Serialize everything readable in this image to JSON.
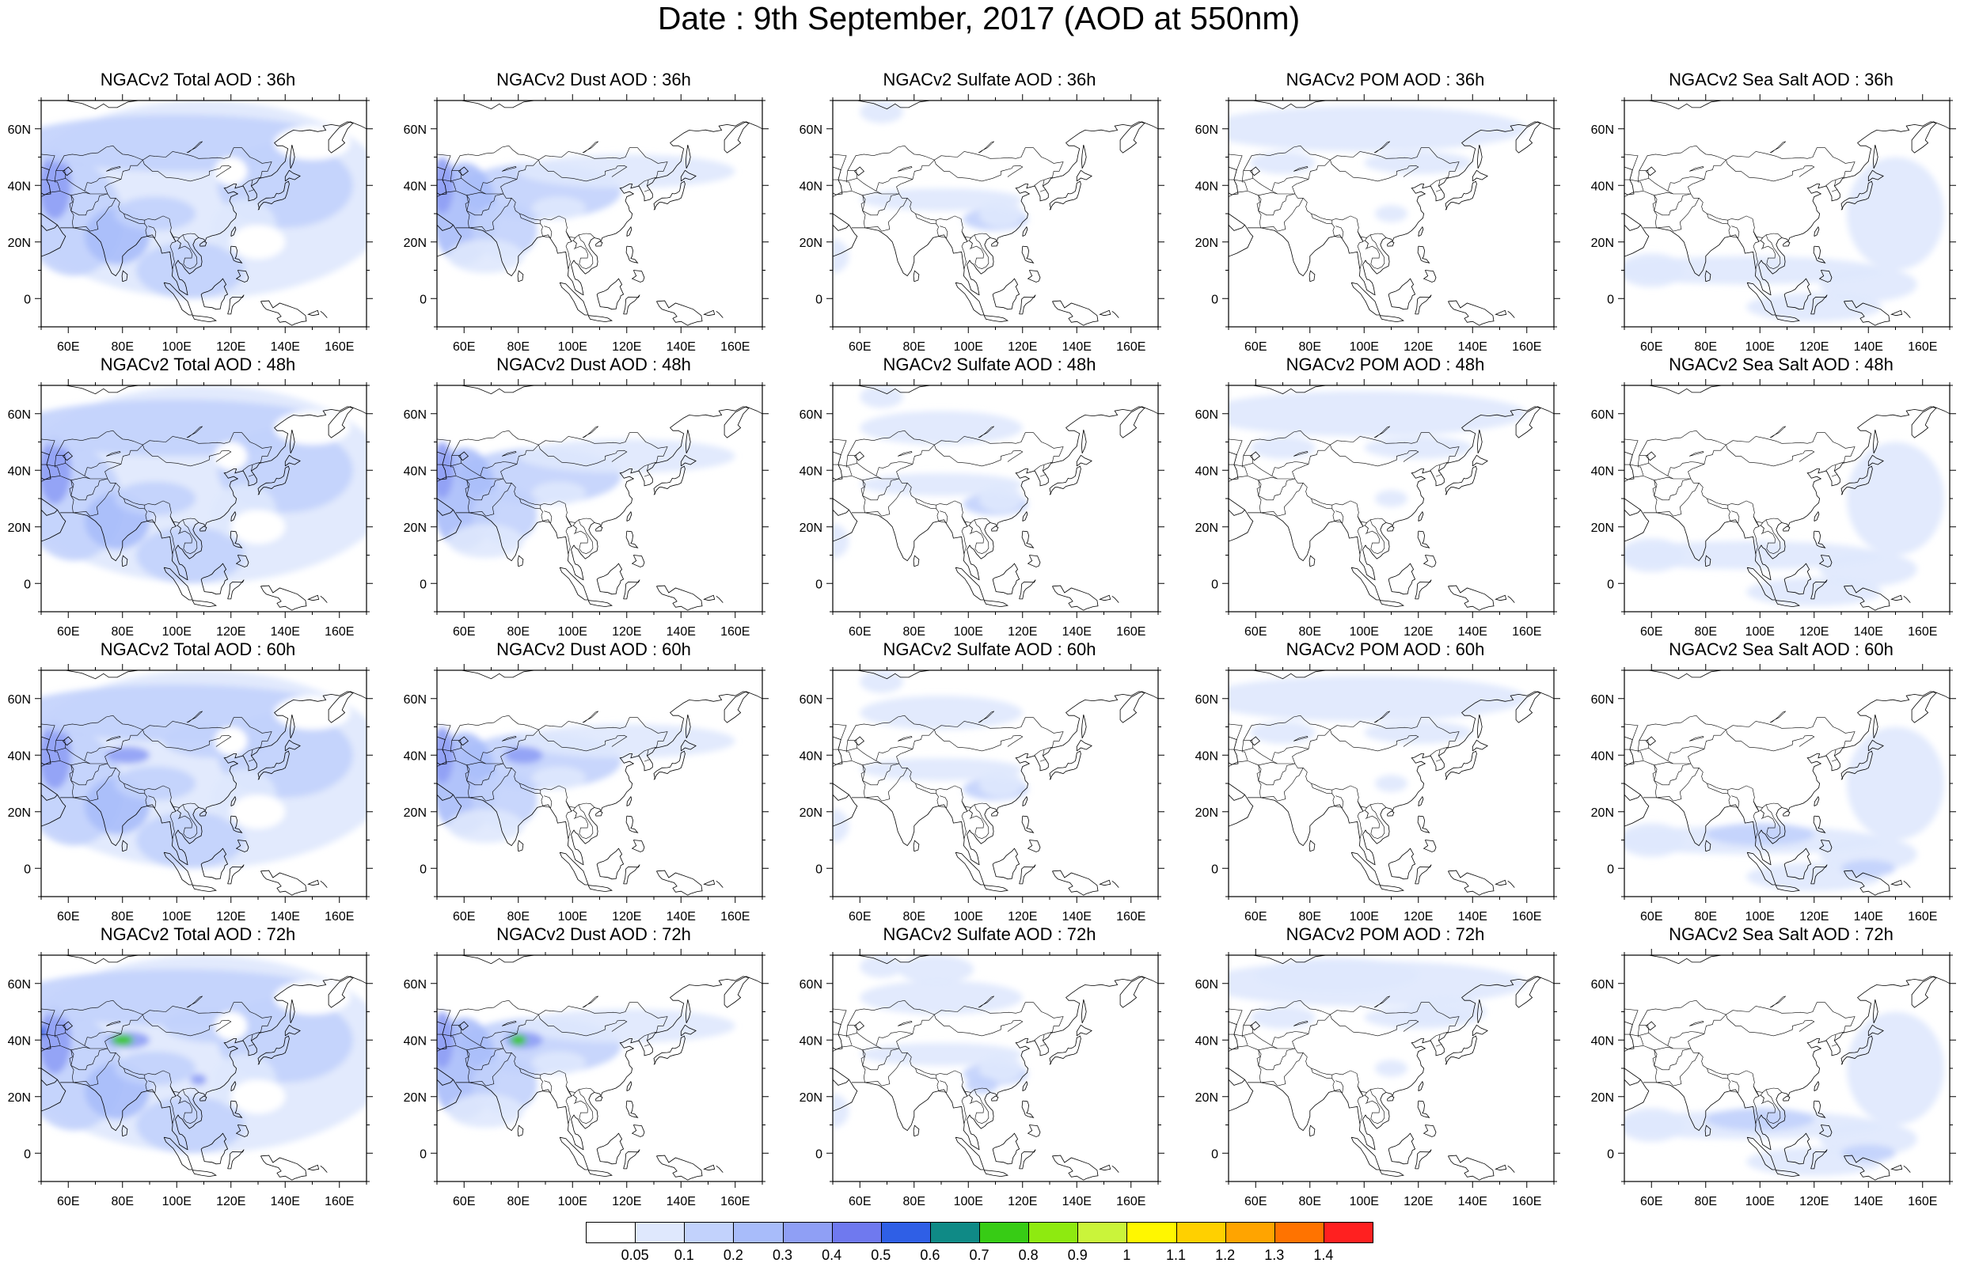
{
  "title": "Date : 9th September, 2017 (AOD at 550nm)",
  "panels": [
    [
      "NGACv2 Total AOD : 36h",
      "NGACv2 Dust AOD : 36h",
      "NGACv2 Sulfate AOD : 36h",
      "NGACv2 POM AOD : 36h",
      "NGACv2 Sea Salt AOD : 36h"
    ],
    [
      "NGACv2 Total AOD : 48h",
      "NGACv2 Dust AOD : 48h",
      "NGACv2 Sulfate AOD : 48h",
      "NGACv2 POM AOD : 48h",
      "NGACv2 Sea Salt AOD : 48h"
    ],
    [
      "NGACv2 Total AOD : 60h",
      "NGACv2 Dust AOD : 60h",
      "NGACv2 Sulfate AOD : 60h",
      "NGACv2 POM AOD : 60h",
      "NGACv2 Sea Salt AOD : 60h"
    ],
    [
      "NGACv2 Total AOD : 72h",
      "NGACv2 Dust AOD : 72h",
      "NGACv2 Sulfate AOD : 72h",
      "NGACv2 POM AOD : 72h",
      "NGACv2 Sea Salt  AOD : 72h"
    ]
  ],
  "x_ticks": [
    "60E",
    "80E",
    "100E",
    "120E",
    "140E",
    "160E"
  ],
  "y_ticks": [
    "60N",
    "40N",
    "20N",
    "0"
  ],
  "colorbar": {
    "labels": [
      "0.05",
      "0.1",
      "0.2",
      "0.3",
      "0.4",
      "0.5",
      "0.6",
      "0.7",
      "0.8",
      "0.9",
      "1",
      "1.1",
      "1.2",
      "1.3",
      "1.4"
    ],
    "colors": [
      "#ffffff",
      "#dfe8fd",
      "#c2d2fc",
      "#a8bcfa",
      "#8f9ff5",
      "#6f79ef",
      "#2f5fe6",
      "#0f8a86",
      "#37cc15",
      "#8eea10",
      "#caf43a",
      "#fff700",
      "#ffd000",
      "#ffa400",
      "#ff7300",
      "#ff2020"
    ]
  }
}
